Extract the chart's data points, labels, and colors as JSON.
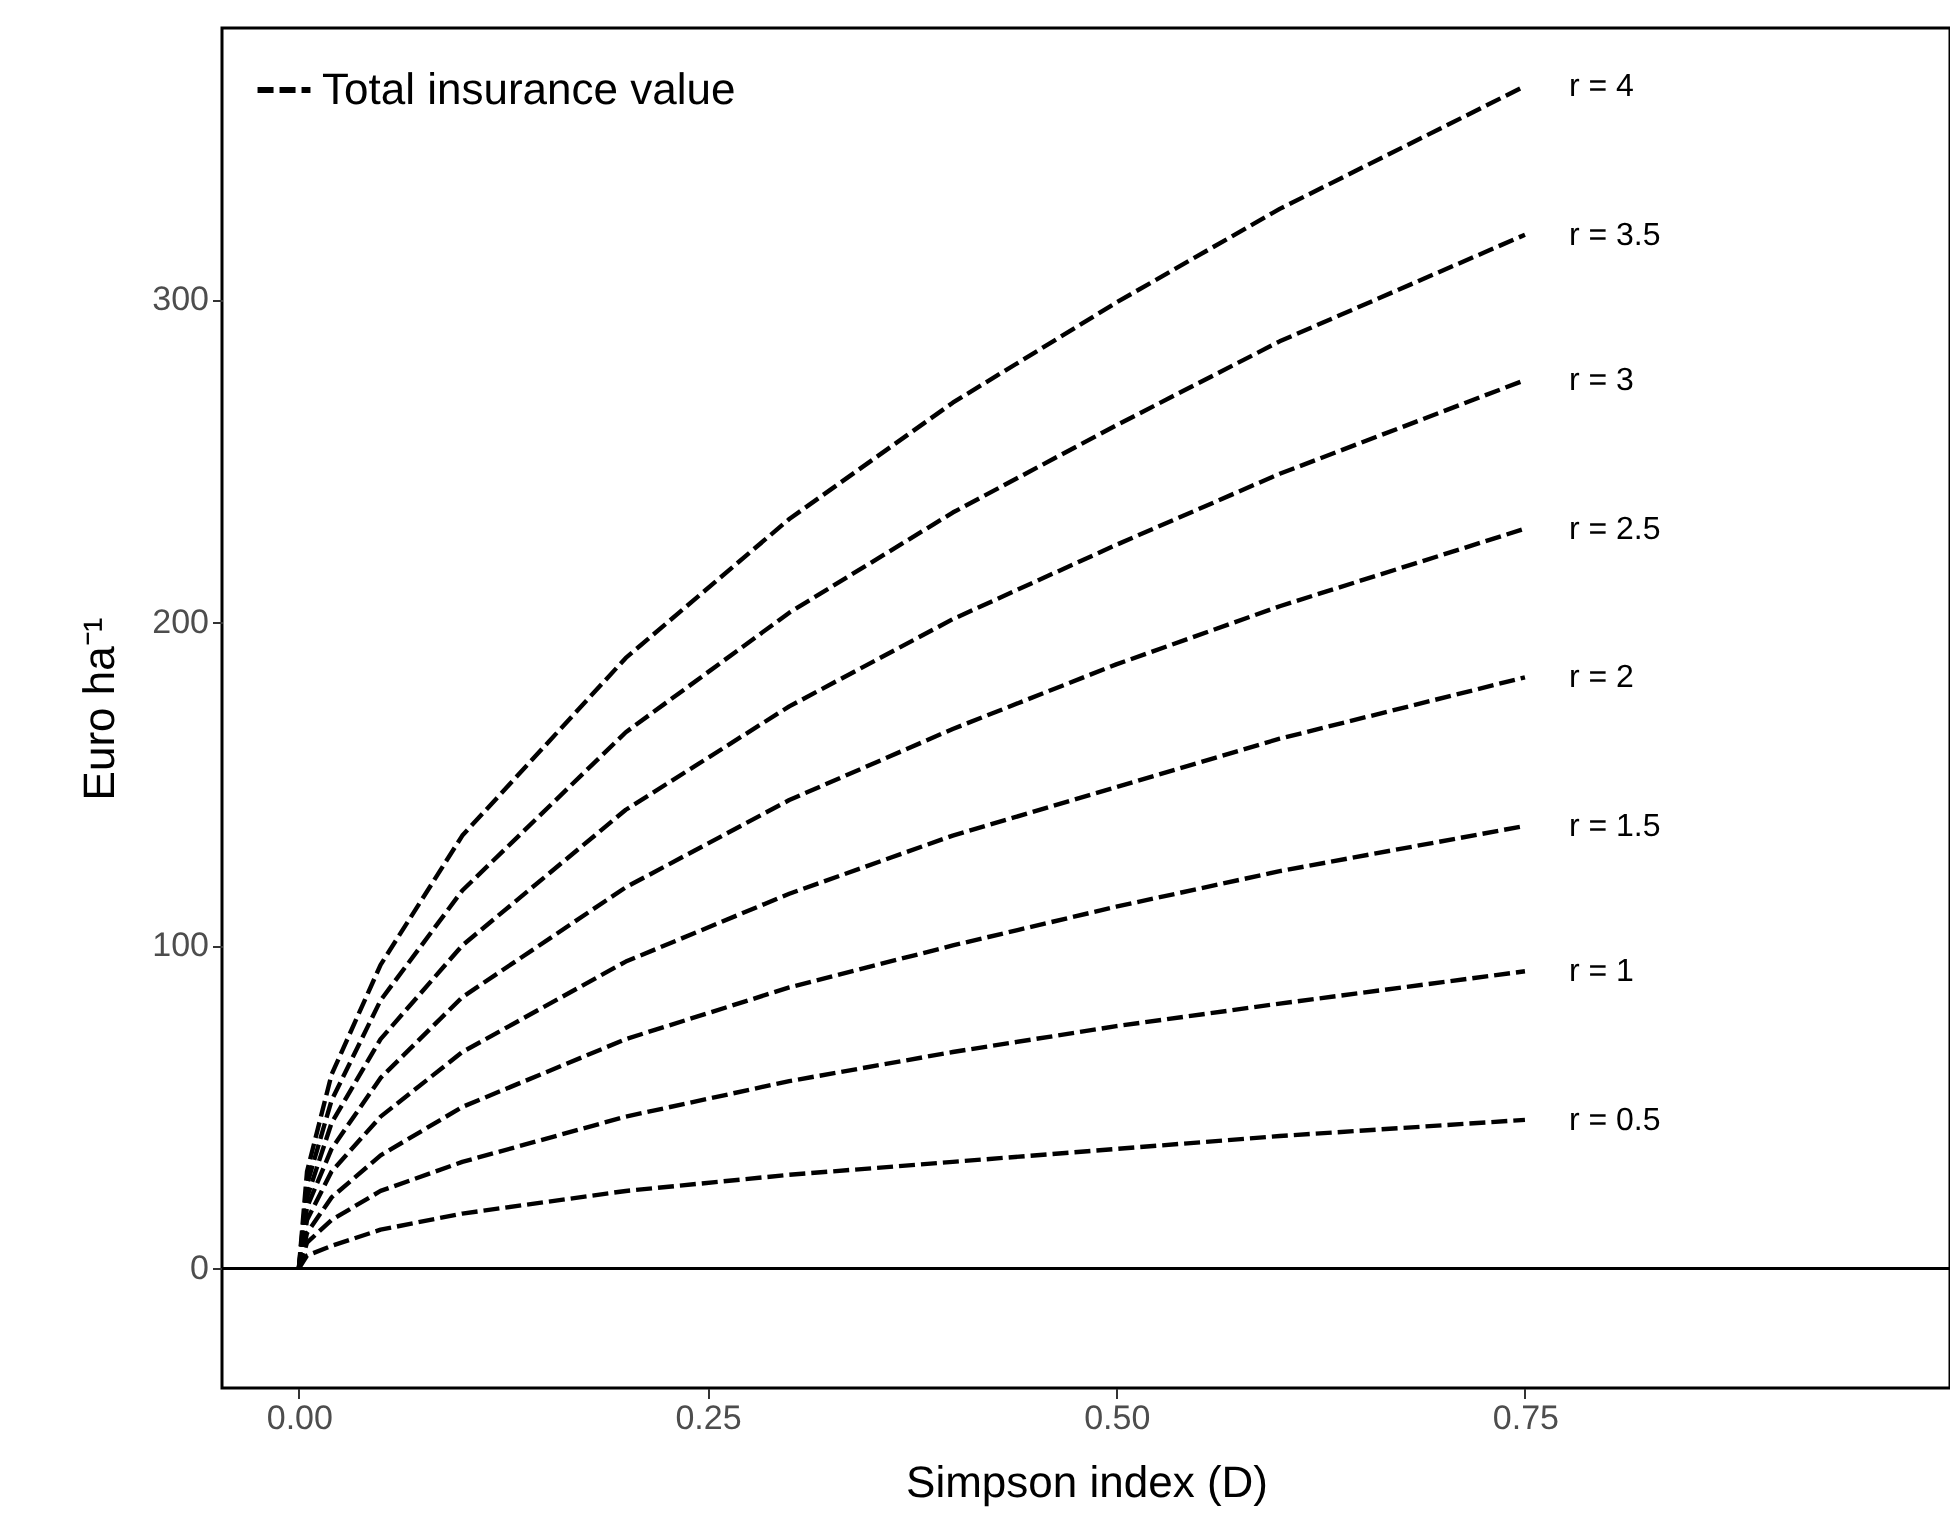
{
  "chart_data": {
    "type": "line",
    "xlabel": "Simpson index (D)",
    "ylabel": "Euro ha⁻¹",
    "legend": "top left",
    "line_style": "dashed",
    "grid": false,
    "x": [
      0,
      0.005,
      0.02,
      0.05,
      0.1,
      0.2,
      0.3,
      0.4,
      0.5,
      0.6,
      0.75
    ],
    "xlim": [
      -0.047,
      1.01
    ],
    "xticks": [
      {
        "value": 0,
        "label": "0.00"
      },
      {
        "value": 0.25,
        "label": "0.25"
      },
      {
        "value": 0.5,
        "label": "0.50"
      },
      {
        "value": 0.75,
        "label": "0.75"
      }
    ],
    "ylim": [
      -37,
      384
    ],
    "yticks": [
      0,
      100,
      200,
      300
    ],
    "ref_lines": [
      {
        "axis": "y",
        "value": 0,
        "color": "#000000"
      }
    ],
    "annotations": [
      "r = 4",
      "r = 3.5",
      "r = 3",
      "r = 2.5",
      "r = 2",
      "r = 1.5",
      "r = 1",
      "r = 0.5"
    ],
    "series": [
      {
        "name": "Total insurance value",
        "color": "#000000",
        "values": [
          0,
          30,
          60,
          94,
          134,
          189,
          232,
          268,
          299,
          328,
          366
        ]
      },
      {
        "color": "#000000",
        "values": [
          0,
          26,
          52,
          83,
          117,
          166,
          203,
          234,
          261,
          287,
          320
        ]
      },
      {
        "color": "#000000",
        "values": [
          0,
          22,
          45,
          71,
          100,
          142,
          174,
          201,
          224,
          246,
          275
        ]
      },
      {
        "color": "#000000",
        "values": [
          0,
          19,
          37,
          59,
          84,
          118,
          145,
          167,
          187,
          205,
          229
        ]
      },
      {
        "color": "#000000",
        "values": [
          0,
          15,
          30,
          47,
          67,
          95,
          116,
          134,
          149,
          164,
          183
        ]
      },
      {
        "color": "#000000",
        "values": [
          0,
          11,
          22,
          35,
          50,
          71,
          87,
          100,
          112,
          123,
          137
        ]
      },
      {
        "color": "#000000",
        "values": [
          0,
          8,
          15,
          24,
          33,
          47,
          58,
          67,
          75,
          82,
          92
        ]
      },
      {
        "color": "#000000",
        "values": [
          0,
          4,
          7,
          12,
          17,
          24,
          29,
          33,
          37,
          41,
          46
        ]
      }
    ]
  }
}
